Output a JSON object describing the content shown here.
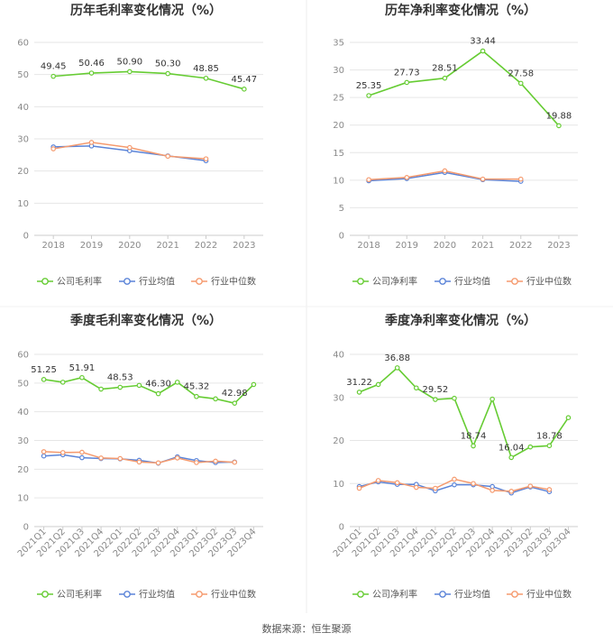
{
  "source_note": "数据来源：恒生聚源",
  "legend_labels": {
    "company_gross": "公司毛利率",
    "company_net": "公司净利率",
    "industry_avg": "行业均值",
    "industry_median": "行业中位数"
  },
  "colors": {
    "company": "#66cc33",
    "industry_avg": "#5b84d8",
    "industry_median": "#f59a6e",
    "grid": "#e6e6e6",
    "axis": "#cccccc"
  },
  "chart_data": [
    {
      "type": "line",
      "title": "历年毛利率变化情况（%）",
      "categories": [
        "2018",
        "2019",
        "2020",
        "2021",
        "2022",
        "2023"
      ],
      "ylim": [
        0,
        60
      ],
      "yticks": [
        0,
        10,
        20,
        30,
        40,
        50,
        60
      ],
      "series": [
        {
          "name": "公司毛利率",
          "color": "#66cc33",
          "values": [
            49.45,
            50.46,
            50.9,
            50.3,
            48.85,
            45.47
          ],
          "data_labels": [
            "49.45",
            "50.46",
            "50.90",
            "50.30",
            "48.85",
            "45.47"
          ]
        },
        {
          "name": "行业均值",
          "color": "#5b84d8",
          "values": [
            27.5,
            27.8,
            26.3,
            24.7,
            23.2,
            null
          ]
        },
        {
          "name": "行业中位数",
          "color": "#f59a6e",
          "values": [
            26.9,
            28.9,
            27.3,
            24.6,
            23.8,
            null
          ]
        }
      ]
    },
    {
      "type": "line",
      "title": "历年净利率变化情况（%）",
      "categories": [
        "2018",
        "2019",
        "2020",
        "2021",
        "2022",
        "2023"
      ],
      "ylim": [
        0,
        35
      ],
      "yticks": [
        0,
        5,
        10,
        15,
        20,
        25,
        30,
        35
      ],
      "series": [
        {
          "name": "公司净利率",
          "color": "#66cc33",
          "values": [
            25.35,
            27.73,
            28.51,
            33.44,
            27.58,
            19.88
          ],
          "data_labels": [
            "25.35",
            "27.73",
            "28.51",
            "33.44",
            "27.58",
            "19.88"
          ]
        },
        {
          "name": "行业均值",
          "color": "#5b84d8",
          "values": [
            9.9,
            10.3,
            11.4,
            10.1,
            9.8,
            null
          ]
        },
        {
          "name": "行业中位数",
          "color": "#f59a6e",
          "values": [
            10.1,
            10.5,
            11.7,
            10.2,
            10.2,
            null
          ]
        }
      ]
    },
    {
      "type": "line",
      "title": "季度毛利率变化情况（%）",
      "categories": [
        "2021Q1",
        "2021Q2",
        "2021Q3",
        "2021Q4",
        "2022Q1",
        "2022Q2",
        "2022Q3",
        "2022Q4",
        "2023Q1",
        "2023Q2",
        "2023Q3",
        "2023Q4"
      ],
      "ylim": [
        0,
        60
      ],
      "yticks": [
        0,
        10,
        20,
        30,
        40,
        50,
        60
      ],
      "series": [
        {
          "name": "公司毛利率",
          "color": "#66cc33",
          "values": [
            51.25,
            50.3,
            51.91,
            47.9,
            48.53,
            49.2,
            46.3,
            50.3,
            45.32,
            44.5,
            42.98,
            49.5
          ],
          "data_labels": [
            "51.25",
            "",
            "51.91",
            "",
            "48.53",
            "",
            "46.30",
            "",
            "45.32",
            "",
            "42.98",
            ""
          ]
        },
        {
          "name": "行业均值",
          "color": "#5b84d8",
          "values": [
            24.6,
            25.0,
            24.0,
            23.7,
            23.6,
            23.1,
            22.1,
            24.3,
            23.0,
            22.3,
            22.5,
            null
          ]
        },
        {
          "name": "行业中位数",
          "color": "#f59a6e",
          "values": [
            26.1,
            25.8,
            25.9,
            23.9,
            23.7,
            22.5,
            22.2,
            23.9,
            22.3,
            22.8,
            22.4,
            null
          ]
        }
      ]
    },
    {
      "type": "line",
      "title": "季度净利率变化情况（%）",
      "categories": [
        "2021Q1",
        "2021Q2",
        "2021Q3",
        "2021Q4",
        "2022Q1",
        "2022Q2",
        "2022Q3",
        "2022Q4",
        "2023Q1",
        "2023Q2",
        "2023Q3",
        "2023Q4"
      ],
      "ylim": [
        0,
        40
      ],
      "yticks": [
        0,
        10,
        20,
        30,
        40
      ],
      "series": [
        {
          "name": "公司净利率",
          "color": "#66cc33",
          "values": [
            31.22,
            33.0,
            36.88,
            32.2,
            29.52,
            29.8,
            18.74,
            29.6,
            16.04,
            18.5,
            18.78,
            25.3
          ],
          "data_labels": [
            "31.22",
            "",
            "36.88",
            "",
            "29.52",
            "",
            "18.74",
            "",
            "16.04",
            "",
            "18.78",
            ""
          ]
        },
        {
          "name": "行业均值",
          "color": "#5b84d8",
          "values": [
            9.3,
            10.4,
            9.8,
            9.8,
            8.3,
            9.7,
            9.7,
            9.3,
            7.8,
            9.2,
            8.1,
            null
          ]
        },
        {
          "name": "行业中位数",
          "color": "#f59a6e",
          "values": [
            8.9,
            10.7,
            10.2,
            9.1,
            8.9,
            11.0,
            10.0,
            8.4,
            8.2,
            9.4,
            8.6,
            null
          ]
        }
      ]
    }
  ]
}
